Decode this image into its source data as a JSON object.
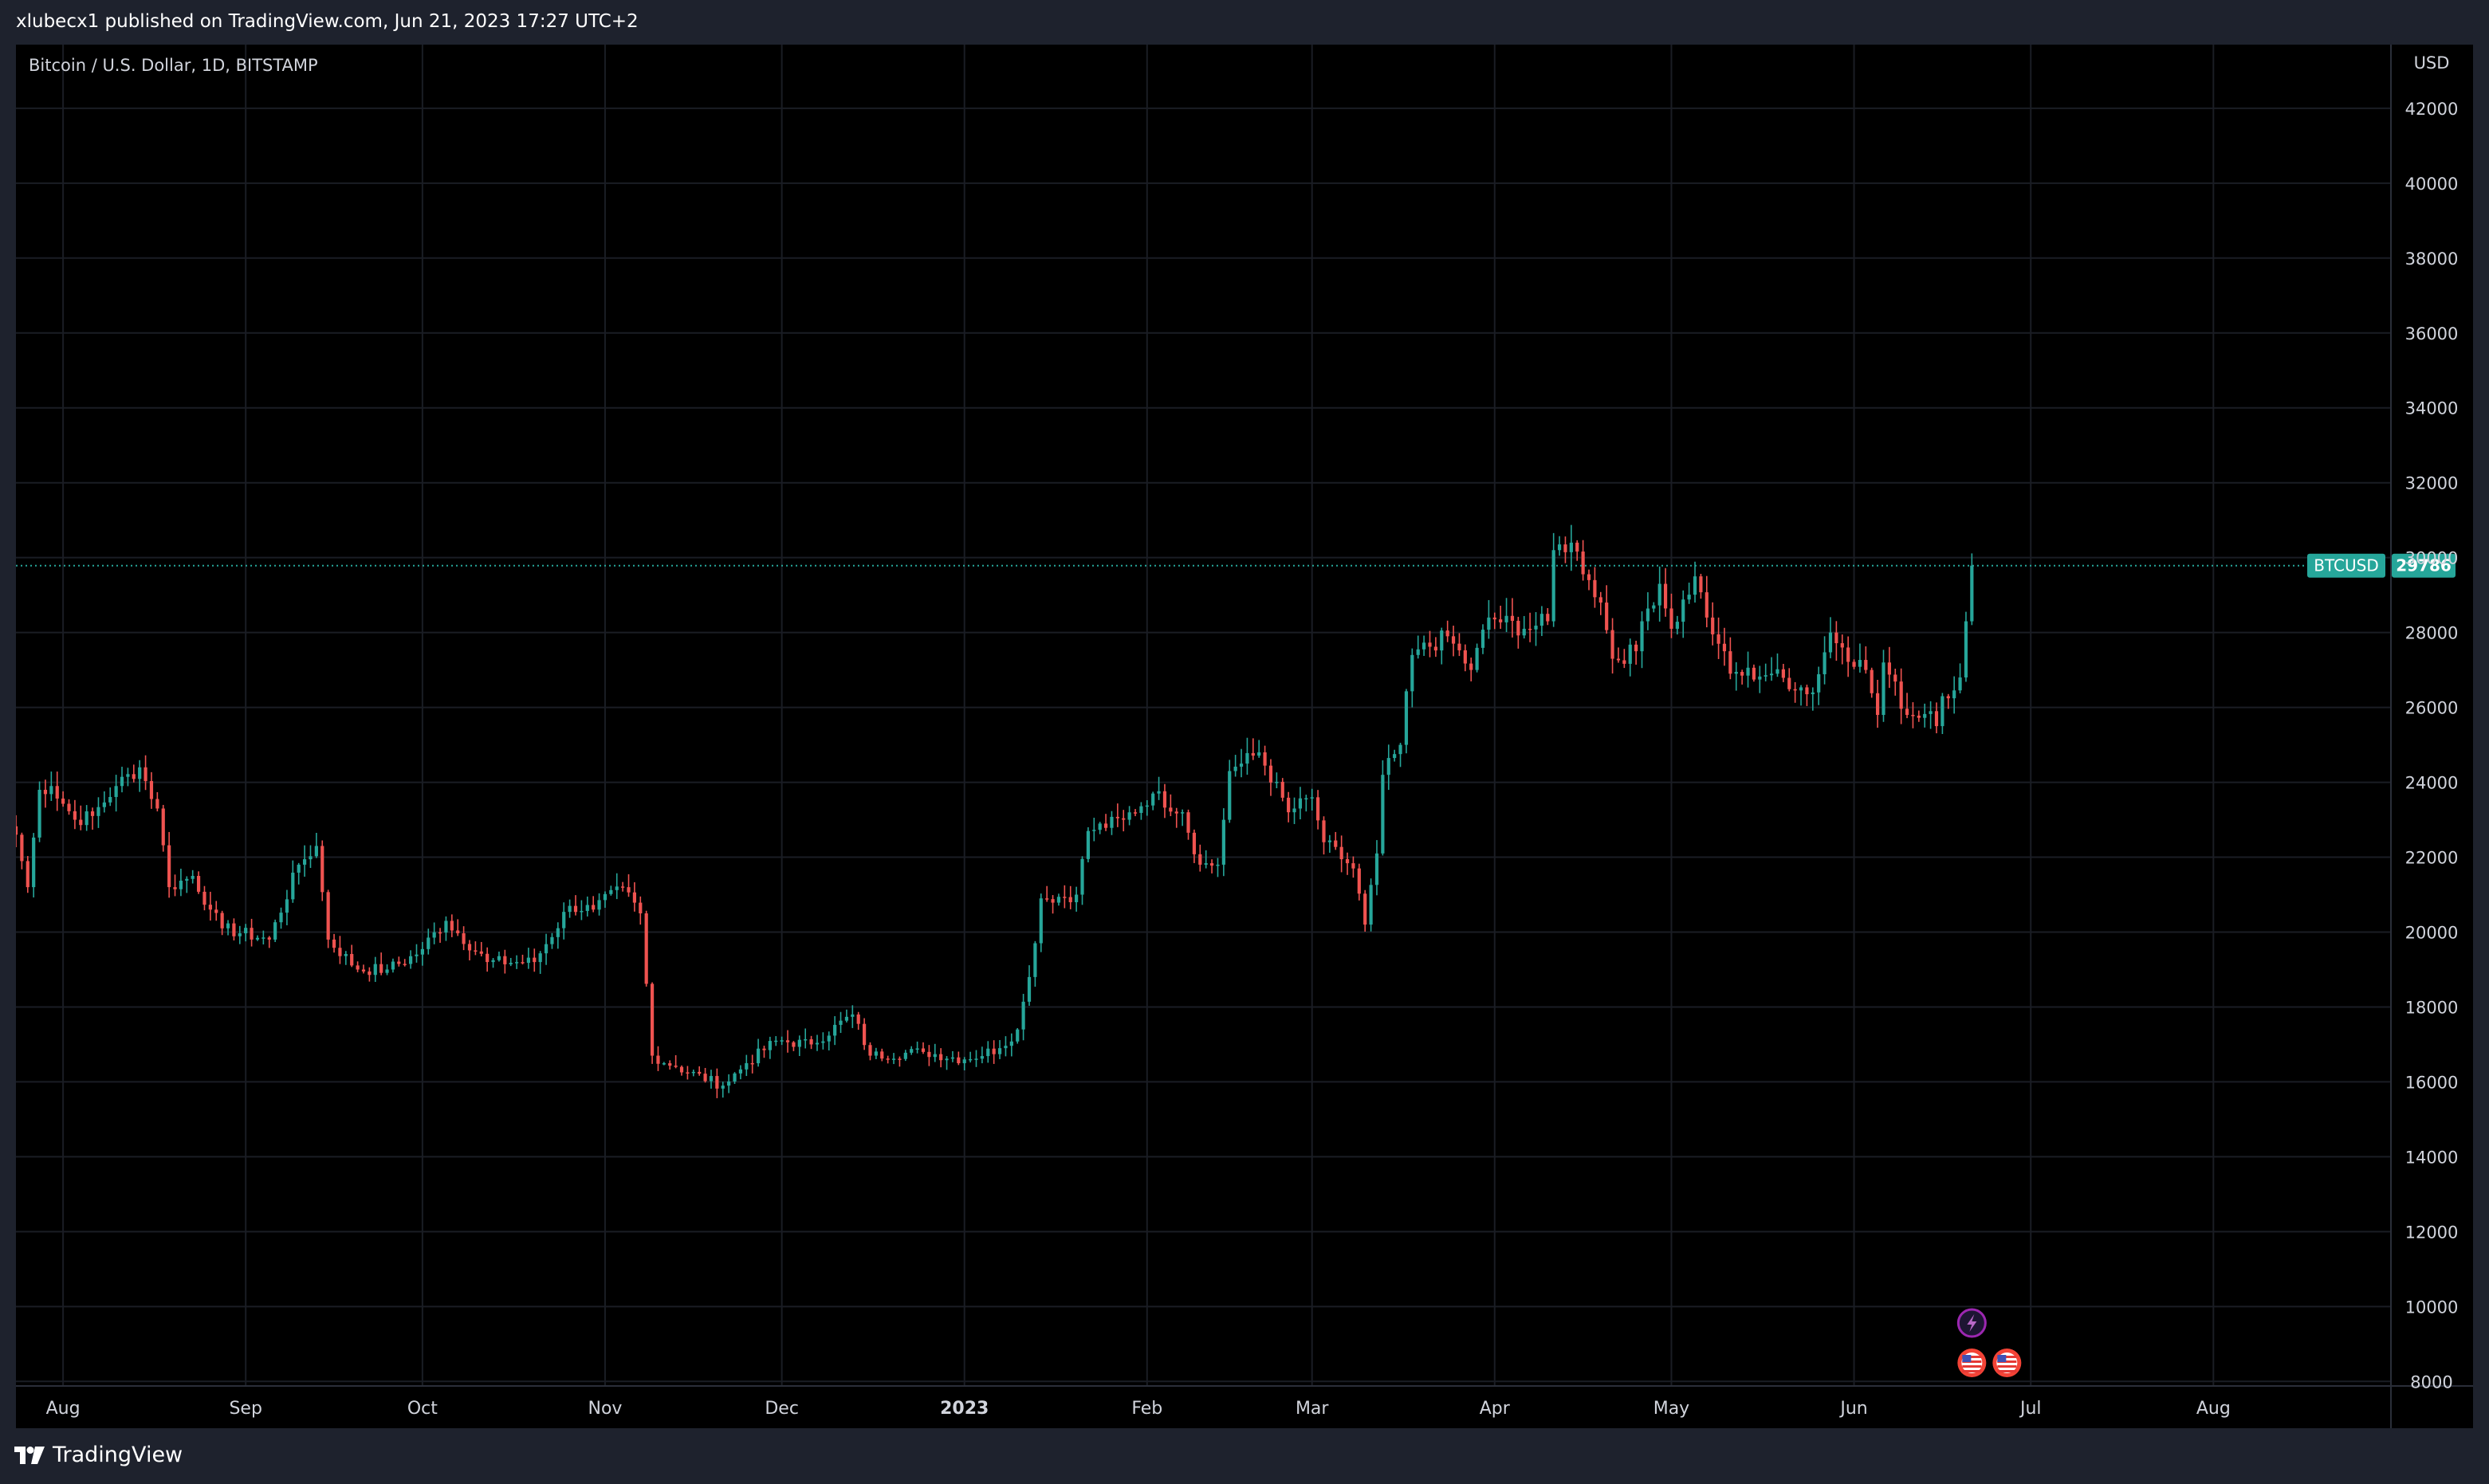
{
  "header": {
    "published": "xlubecx1 published on TradingView.com, Jun 21, 2023 17:27 UTC+2"
  },
  "legend": {
    "symbol_title": "Bitcoin / U.S. Dollar, 1D, BITSTAMP"
  },
  "footer": {
    "brand": "TradingView"
  },
  "colors": {
    "up": "#26a69a",
    "down": "#ef5350",
    "grid": "#1a1d24",
    "background": "#000000",
    "axis_text": "#d1d4dc",
    "price_line": "#26a69a"
  },
  "icons": {
    "event_lightning": "lightning-icon",
    "event_flags": "us-flag-icon"
  },
  "chart_data": {
    "type": "candlestick",
    "currency_label": "USD",
    "y_ticks": [
      8000,
      10000,
      12000,
      14000,
      16000,
      18000,
      20000,
      22000,
      24000,
      26000,
      28000,
      30000,
      32000,
      34000,
      36000,
      38000,
      40000,
      42000
    ],
    "ylim": [
      7900,
      43700
    ],
    "x_ticks": [
      {
        "label": "Aug",
        "date": "2022-08-01"
      },
      {
        "label": "Sep",
        "date": "2022-09-01"
      },
      {
        "label": "Oct",
        "date": "2022-10-01"
      },
      {
        "label": "Nov",
        "date": "2022-11-01"
      },
      {
        "label": "Dec",
        "date": "2022-12-01"
      },
      {
        "label": "2023",
        "date": "2023-01-01"
      },
      {
        "label": "Feb",
        "date": "2023-02-01"
      },
      {
        "label": "Mar",
        "date": "2023-03-01"
      },
      {
        "label": "Apr",
        "date": "2023-04-01"
      },
      {
        "label": "May",
        "date": "2023-05-01"
      },
      {
        "label": "Jun",
        "date": "2023-06-01"
      },
      {
        "label": "Jul",
        "date": "2023-07-01"
      },
      {
        "label": "Aug",
        "date": "2023-08-01"
      }
    ],
    "xlim": [
      "2022-07-24",
      "2023-08-31"
    ],
    "last_price": {
      "label": "BTCUSD",
      "value": 29786
    },
    "close_anchors": [
      [
        "2022-07-24",
        22600
      ],
      [
        "2022-07-26",
        21200
      ],
      [
        "2022-07-28",
        23800
      ],
      [
        "2022-07-30",
        23900
      ],
      [
        "2022-08-03",
        23000
      ],
      [
        "2022-08-06",
        23100
      ],
      [
        "2022-08-10",
        23900
      ],
      [
        "2022-08-14",
        24400
      ],
      [
        "2022-08-17",
        23300
      ],
      [
        "2022-08-19",
        21200
      ],
      [
        "2022-08-23",
        21500
      ],
      [
        "2022-08-26",
        20600
      ],
      [
        "2022-08-28",
        20100
      ],
      [
        "2022-09-05",
        19800
      ],
      [
        "2022-09-10",
        21800
      ],
      [
        "2022-09-13",
        22300
      ],
      [
        "2022-09-15",
        19800
      ],
      [
        "2022-09-20",
        19000
      ],
      [
        "2022-09-25",
        19000
      ],
      [
        "2022-09-30",
        19400
      ],
      [
        "2022-10-05",
        20300
      ],
      [
        "2022-10-12",
        19200
      ],
      [
        "2022-10-20",
        19200
      ],
      [
        "2022-10-26",
        20700
      ],
      [
        "2022-10-30",
        20600
      ],
      [
        "2022-11-04",
        21200
      ],
      [
        "2022-11-07",
        20500
      ],
      [
        "2022-11-09",
        16700
      ],
      [
        "2022-11-13",
        16400
      ],
      [
        "2022-11-21",
        15900
      ],
      [
        "2022-11-25",
        16500
      ],
      [
        "2022-11-30",
        17100
      ],
      [
        "2022-12-06",
        17000
      ],
      [
        "2022-12-13",
        17800
      ],
      [
        "2022-12-16",
        16700
      ],
      [
        "2022-12-25",
        16800
      ],
      [
        "2023-01-01",
        16600
      ],
      [
        "2023-01-07",
        16900
      ],
      [
        "2023-01-10",
        17400
      ],
      [
        "2023-01-12",
        18800
      ],
      [
        "2023-01-14",
        20900
      ],
      [
        "2023-01-20",
        21000
      ],
      [
        "2023-01-22",
        22700
      ],
      [
        "2023-01-28",
        23000
      ],
      [
        "2023-02-02",
        23700
      ],
      [
        "2023-02-07",
        23200
      ],
      [
        "2023-02-10",
        21800
      ],
      [
        "2023-02-13",
        21800
      ],
      [
        "2023-02-15",
        24300
      ],
      [
        "2023-02-17",
        24500
      ],
      [
        "2023-02-20",
        24800
      ],
      [
        "2023-02-25",
        23200
      ],
      [
        "2023-03-01",
        23600
      ],
      [
        "2023-03-03",
        22400
      ],
      [
        "2023-03-08",
        21700
      ],
      [
        "2023-03-10",
        20200
      ],
      [
        "2023-03-12",
        22100
      ],
      [
        "2023-03-13",
        24200
      ],
      [
        "2023-03-16",
        25000
      ],
      [
        "2023-03-18",
        27400
      ],
      [
        "2023-03-24",
        27900
      ],
      [
        "2023-03-28",
        27000
      ],
      [
        "2023-03-31",
        28400
      ],
      [
        "2023-04-06",
        28100
      ],
      [
        "2023-04-10",
        28300
      ],
      [
        "2023-04-11",
        30200
      ],
      [
        "2023-04-14",
        30400
      ],
      [
        "2023-04-17",
        29400
      ],
      [
        "2023-04-19",
        28800
      ],
      [
        "2023-04-21",
        27300
      ],
      [
        "2023-04-25",
        27500
      ],
      [
        "2023-04-26",
        28300
      ],
      [
        "2023-04-29",
        29300
      ],
      [
        "2023-05-01",
        28100
      ],
      [
        "2023-05-05",
        29500
      ],
      [
        "2023-05-07",
        28400
      ],
      [
        "2023-05-09",
        27700
      ],
      [
        "2023-05-11",
        26900
      ],
      [
        "2023-05-18",
        26900
      ],
      [
        "2023-05-25",
        26400
      ],
      [
        "2023-05-28",
        28000
      ],
      [
        "2023-05-30",
        27600
      ],
      [
        "2023-06-03",
        27000
      ],
      [
        "2023-06-05",
        25800
      ],
      [
        "2023-06-06",
        27200
      ],
      [
        "2023-06-10",
        25800
      ],
      [
        "2023-06-14",
        25900
      ],
      [
        "2023-06-15",
        25500
      ],
      [
        "2023-06-16",
        26300
      ],
      [
        "2023-06-19",
        26800
      ],
      [
        "2023-06-20",
        28300
      ],
      [
        "2023-06-21",
        29786
      ]
    ]
  }
}
